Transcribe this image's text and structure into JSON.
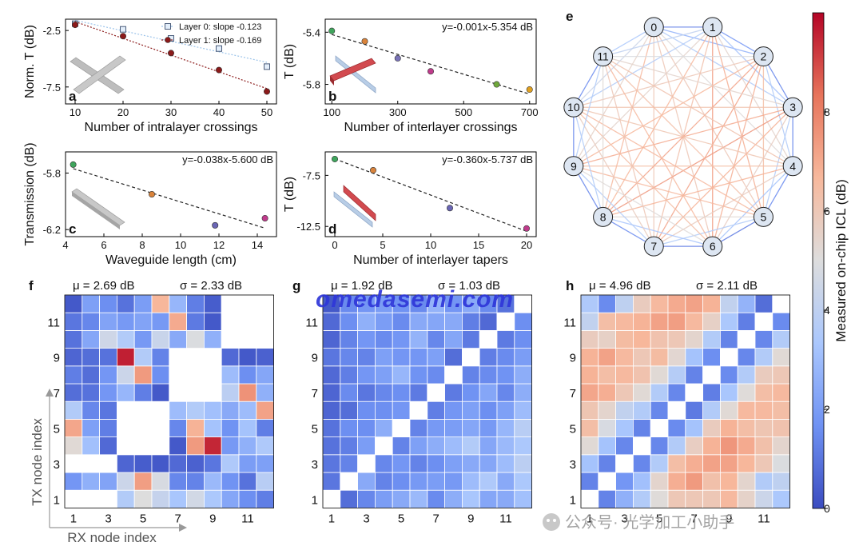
{
  "colorbar": {
    "label": "Measured on-chip ICL (dB)",
    "ticks": [
      0,
      2,
      4,
      6,
      8
    ],
    "range": [
      0,
      10
    ],
    "colors": [
      "#3b4cc0",
      "#6f92f3",
      "#aac7fd",
      "#dddddd",
      "#f7b89c",
      "#e7745b",
      "#b40426"
    ]
  },
  "watermark": "omedasemi.com",
  "footer_text": "公众号· 光学加工小助手",
  "chart_data": [
    {
      "panel": "a",
      "type": "scatter",
      "xlabel": "Number of intralayer crossings",
      "ylabel": "Norm. T (dB)",
      "xlim": [
        8,
        52
      ],
      "ylim": [
        -9,
        -1.5
      ],
      "xticks": [
        10,
        20,
        30,
        40,
        50
      ],
      "yticks": [
        -2.5,
        -7.5
      ],
      "series": [
        {
          "name": "Layer 0: slope -0.123",
          "marker": "square",
          "color": "#9cc4ea",
          "fit": "dotted",
          "x": [
            10,
            20,
            30,
            40,
            50
          ],
          "y": [
            -1.9,
            -2.4,
            -3.2,
            -4.1,
            -5.7
          ]
        },
        {
          "name": "Layer 1: slope -0.169",
          "marker": "circle",
          "color": "#8b1a1a",
          "fit": "dotted",
          "x": [
            10,
            20,
            30,
            40,
            50
          ],
          "y": [
            -2.0,
            -3.0,
            -4.5,
            -6.0,
            -7.9
          ]
        }
      ]
    },
    {
      "panel": "b",
      "type": "scatter",
      "annotation": "y=-0.001x-5.354 dB",
      "xlabel": "Number of interlayer crossings",
      "ylabel": "T (dB)",
      "xlim": [
        80,
        720
      ],
      "ylim": [
        -5.95,
        -5.3
      ],
      "xticks": [
        100,
        300,
        500,
        700
      ],
      "yticks": [
        -5.4,
        -5.8
      ],
      "series": [
        {
          "name": "",
          "marker": "circle",
          "fit": "dashed",
          "x": [
            100,
            200,
            300,
            400,
            600,
            700
          ],
          "y": [
            -5.39,
            -5.47,
            -5.6,
            -5.7,
            -5.8,
            -5.84
          ],
          "colors": [
            "#3fa55c",
            "#d9833b",
            "#7a73b8",
            "#c03b8c",
            "#6fa83b",
            "#e0a020"
          ]
        }
      ]
    },
    {
      "panel": "c",
      "type": "scatter",
      "annotation": "y=-0.038x-5.600 dB",
      "xlabel": "Waveguide length (cm)",
      "ylabel": "Transmission (dB)",
      "xlim": [
        4,
        15
      ],
      "ylim": [
        -6.25,
        -5.65
      ],
      "xticks": [
        4,
        6,
        8,
        10,
        12,
        14
      ],
      "yticks": [
        -5.8,
        -6.2
      ],
      "series": [
        {
          "name": "",
          "marker": "circle",
          "fit": "dashed",
          "x": [
            4.4,
            8.5,
            11.8,
            14.4
          ],
          "y": [
            -5.74,
            -5.95,
            -6.17,
            -6.12
          ],
          "colors": [
            "#3fa55c",
            "#d9833b",
            "#6a66b5",
            "#c03b8c"
          ]
        }
      ]
    },
    {
      "panel": "d",
      "type": "scatter",
      "annotation": "y=-0.360x-5.737 dB",
      "xlabel": "Number of interlayer tapers",
      "ylabel": "T (dB)",
      "xlim": [
        -1,
        21
      ],
      "ylim": [
        -13.5,
        -5.2
      ],
      "xticks": [
        0,
        5,
        10,
        15,
        20
      ],
      "yticks": [
        -7.5,
        -12.5
      ],
      "series": [
        {
          "name": "",
          "marker": "circle",
          "fit": "dashed",
          "x": [
            0,
            4,
            12,
            20
          ],
          "y": [
            -5.9,
            -7.0,
            -10.7,
            -12.7
          ],
          "colors": [
            "#3fa55c",
            "#d9833b",
            "#6a66b5",
            "#c03b8c"
          ]
        }
      ]
    },
    {
      "panel": "e",
      "type": "network",
      "nodes": [
        "0",
        "1",
        "2",
        "3",
        "4",
        "5",
        "6",
        "7",
        "8",
        "9",
        "10",
        "11"
      ]
    },
    {
      "panel": "f",
      "type": "heatmap",
      "stats": {
        "mu": "μ = 2.69 dB",
        "sigma": "σ = 2.33 dB"
      },
      "xlabel": "RX node index",
      "ylabel": "TX node index",
      "xticks": [
        "1",
        "3",
        "5",
        "7",
        "9",
        "11"
      ],
      "yticks": [
        "1",
        "3",
        "5",
        "7",
        "9",
        "11"
      ],
      "values": [
        [
          null,
          null,
          null,
          3.6,
          5.0,
          4.2,
          3.3,
          4.6,
          3.4,
          2.3,
          1.6,
          1.2
        ],
        [
          1.8,
          2.6,
          2.2,
          4.4,
          7.3,
          4.8,
          1.4,
          1.3,
          2.9,
          1.7,
          0.9,
          3.8
        ],
        [
          null,
          null,
          null,
          0.6,
          0.4,
          0.3,
          0.7,
          0.5,
          1.0,
          3.5,
          2.0,
          2.1
        ],
        [
          5.2,
          3.1,
          0.7,
          null,
          null,
          null,
          0.3,
          7.4,
          9.5,
          1.9,
          2.6,
          3.5
        ],
        [
          7.1,
          2.1,
          1.2,
          null,
          null,
          null,
          1.4,
          6.8,
          3.2,
          1.7,
          3.2,
          1.2
        ],
        [
          3.6,
          1.4,
          1.0,
          null,
          null,
          null,
          3.0,
          3.6,
          3.1,
          2.4,
          3.0,
          7.2
        ],
        [
          0.8,
          0.9,
          1.8,
          2.8,
          1.2,
          0.3,
          null,
          null,
          null,
          3.9,
          7.6,
          2.6
        ],
        [
          1.2,
          0.8,
          1.8,
          4.4,
          7.4,
          1.6,
          null,
          null,
          null,
          3.0,
          1.6,
          2.3
        ],
        [
          0.6,
          0.8,
          0.9,
          9.6,
          3.6,
          1.3,
          null,
          null,
          null,
          0.7,
          0.3,
          0.5
        ],
        [
          0.9,
          2.3,
          4.5,
          3.6,
          1.9,
          4.3,
          2.4,
          4.9,
          2.6,
          null,
          null,
          null
        ],
        [
          1.0,
          1.4,
          2.2,
          1.9,
          2.2,
          1.9,
          7.0,
          1.1,
          0.3,
          null,
          null,
          null
        ],
        [
          0.3,
          2.1,
          1.6,
          0.9,
          2.0,
          6.7,
          2.8,
          1.2,
          0.4,
          null,
          null,
          null
        ]
      ]
    },
    {
      "panel": "g",
      "type": "heatmap",
      "stats": {
        "mu": "μ = 1.92 dB",
        "sigma": "σ = 1.03 dB"
      },
      "xticks": [
        "1",
        "3",
        "5",
        "7",
        "9",
        "11"
      ],
      "yticks": [
        "1",
        "3",
        "5",
        "7",
        "9",
        "11"
      ],
      "values": [
        [
          null,
          0.8,
          1.4,
          2.0,
          2.4,
          2.9,
          1.5,
          2.5,
          3.3,
          2.3,
          2.4,
          3.1
        ],
        [
          1.0,
          null,
          2.4,
          1.3,
          1.6,
          1.9,
          2.0,
          1.9,
          3.0,
          3.5,
          2.4,
          3.4
        ],
        [
          1.0,
          1.3,
          null,
          1.4,
          1.8,
          1.3,
          1.6,
          2.1,
          2.4,
          2.3,
          3.0,
          3.9
        ],
        [
          0.9,
          1.2,
          2.0,
          null,
          1.3,
          2.1,
          2.5,
          3.0,
          3.6,
          2.3,
          2.9,
          3.4
        ],
        [
          0.9,
          1.6,
          1.6,
          2.5,
          null,
          1.3,
          1.9,
          2.0,
          2.3,
          1.9,
          2.8,
          3.8
        ],
        [
          0.6,
          0.8,
          1.6,
          1.6,
          1.8,
          null,
          1.2,
          1.8,
          2.1,
          1.6,
          2.1,
          3.0
        ],
        [
          0.6,
          1.5,
          1.0,
          1.4,
          1.6,
          1.1,
          null,
          1.1,
          1.7,
          2.3,
          1.4,
          2.5
        ],
        [
          0.7,
          1.2,
          1.8,
          2.1,
          2.8,
          1.7,
          1.5,
          null,
          1.3,
          1.5,
          1.7,
          2.5
        ],
        [
          1.0,
          1.4,
          1.3,
          2.1,
          1.8,
          1.8,
          2.1,
          0.8,
          null,
          1.2,
          1.5,
          2.0
        ],
        [
          0.6,
          1.3,
          1.8,
          1.5,
          1.8,
          2.7,
          1.4,
          2.3,
          1.1,
          null,
          1.1,
          1.6
        ],
        [
          0.7,
          1.6,
          2.6,
          2.0,
          1.5,
          2.4,
          2.3,
          2.4,
          1.2,
          0.7,
          null,
          1.6
        ],
        [
          0.3,
          1.5,
          1.8,
          2.0,
          1.7,
          1.5,
          2.7,
          1.8,
          2.4,
          1.5,
          0.9,
          null
        ]
      ]
    },
    {
      "panel": "h",
      "type": "heatmap",
      "stats": {
        "mu": "μ = 4.96 dB",
        "sigma": "σ = 2.11 dB"
      },
      "xticks": [
        "1",
        "3",
        "5",
        "7",
        "9",
        "11"
      ],
      "yticks": [
        "1",
        "3",
        "5",
        "7",
        "9",
        "11"
      ],
      "values": [
        [
          null,
          1.3,
          2.6,
          3.6,
          5.1,
          6.0,
          6.0,
          6.0,
          6.6,
          5.5,
          4.4,
          3.4
        ],
        [
          1.3,
          null,
          1.8,
          3.1,
          5.4,
          6.9,
          7.4,
          6.3,
          6.7,
          5.4,
          3.6,
          4.0
        ],
        [
          3.2,
          1.3,
          null,
          1.4,
          3.6,
          6.4,
          6.9,
          7.2,
          7.2,
          6.7,
          6.0,
          4.9
        ],
        [
          5.2,
          3.2,
          1.4,
          null,
          1.4,
          3.6,
          5.7,
          6.8,
          7.5,
          7.0,
          6.3,
          5.4
        ],
        [
          6.4,
          4.8,
          3.3,
          1.3,
          null,
          1.5,
          3.2,
          5.8,
          6.8,
          6.4,
          6.1,
          6.2
        ],
        [
          6.1,
          5.4,
          4.1,
          3.6,
          1.4,
          null,
          1.1,
          3.6,
          5.2,
          6.6,
          6.6,
          6.4
        ],
        [
          7.1,
          6.9,
          6.0,
          5.2,
          3.6,
          1.4,
          null,
          1.2,
          3.3,
          5.1,
          6.4,
          6.6
        ],
        [
          6.8,
          6.4,
          6.6,
          6.2,
          5.2,
          3.7,
          1.3,
          null,
          1.5,
          3.6,
          5.8,
          6.0
        ],
        [
          6.8,
          7.2,
          6.6,
          6.0,
          6.5,
          5.3,
          3.2,
          1.6,
          null,
          1.4,
          3.6,
          5.2
        ],
        [
          5.8,
          5.6,
          6.5,
          6.7,
          6.2,
          6.0,
          5.4,
          3.6,
          1.3,
          null,
          1.4,
          3.6
        ],
        [
          4.1,
          6.4,
          6.6,
          6.8,
          7.2,
          7.3,
          6.6,
          5.6,
          3.4,
          1.2,
          null,
          1.5
        ],
        [
          3.5,
          1.5,
          4.0,
          5.8,
          6.6,
          7.0,
          7.2,
          6.8,
          4.1,
          2.7,
          0.8,
          null
        ]
      ]
    }
  ]
}
